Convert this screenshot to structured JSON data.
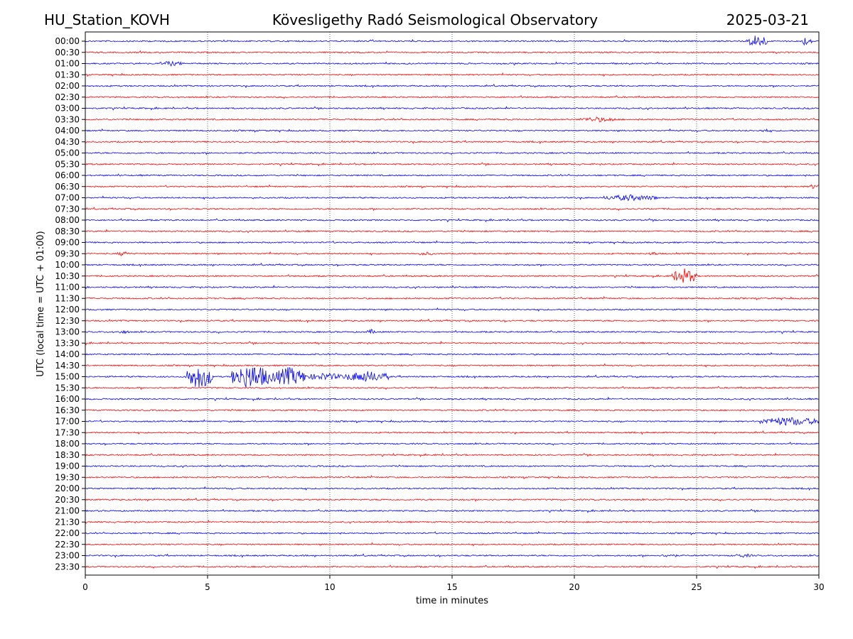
{
  "header": {
    "station": "HU_Station_KOVH",
    "observatory": "Kövesligethy Radó Seismological Observatory",
    "date": "2025-03-21"
  },
  "chart_data": {
    "type": "line",
    "title": "Kövesligethy Radó Seismological Observatory",
    "xlabel": "time in minutes",
    "ylabel": "UTC (local time = UTC + 01:00)",
    "xlim": [
      0,
      30
    ],
    "x_ticks": [
      0,
      5,
      10,
      15,
      20,
      25,
      30
    ],
    "grid": "vertical dotted lines at x ticks",
    "trace_colors": [
      "#0000ff",
      "#ff0000"
    ],
    "rows": [
      "00:00",
      "00:30",
      "01:00",
      "01:30",
      "02:00",
      "02:30",
      "03:00",
      "03:30",
      "04:00",
      "04:30",
      "05:00",
      "05:30",
      "06:00",
      "06:30",
      "07:00",
      "07:30",
      "08:00",
      "08:30",
      "09:00",
      "09:30",
      "10:00",
      "10:30",
      "11:00",
      "11:30",
      "12:00",
      "12:30",
      "13:00",
      "13:30",
      "14:00",
      "14:30",
      "15:00",
      "15:30",
      "16:00",
      "16:30",
      "17:00",
      "17:30",
      "18:00",
      "18:30",
      "19:00",
      "19:30",
      "20:00",
      "20:30",
      "21:00",
      "21:30",
      "22:00",
      "22:30",
      "23:00",
      "23:30"
    ],
    "events": [
      {
        "row": "00:00",
        "start_min": 27.1,
        "end_min": 27.9,
        "amplitude": 0.55
      },
      {
        "row": "00:00",
        "start_min": 29.2,
        "end_min": 29.7,
        "amplitude": 0.35
      },
      {
        "row": "01:00",
        "start_min": 3.0,
        "end_min": 4.0,
        "amplitude": 0.2
      },
      {
        "row": "03:30",
        "start_min": 20.2,
        "end_min": 21.7,
        "amplitude": 0.2
      },
      {
        "row": "04:00",
        "start_min": 27.6,
        "end_min": 28.0,
        "amplitude": 0.15
      },
      {
        "row": "06:30",
        "start_min": 29.6,
        "end_min": 30.0,
        "amplitude": 0.2
      },
      {
        "row": "07:00",
        "start_min": 21.2,
        "end_min": 23.4,
        "amplitude": 0.25
      },
      {
        "row": "09:30",
        "start_min": 1.3,
        "end_min": 1.8,
        "amplitude": 0.2
      },
      {
        "row": "09:30",
        "start_min": 13.6,
        "end_min": 14.2,
        "amplitude": 0.15
      },
      {
        "row": "09:30",
        "start_min": 23.0,
        "end_min": 23.5,
        "amplitude": 0.15
      },
      {
        "row": "10:30",
        "start_min": 24.0,
        "end_min": 25.0,
        "amplitude": 0.6
      },
      {
        "row": "13:00",
        "start_min": 1.3,
        "end_min": 1.8,
        "amplitude": 0.15
      },
      {
        "row": "13:00",
        "start_min": 11.5,
        "end_min": 11.9,
        "amplitude": 0.2
      },
      {
        "row": "15:00",
        "start_min": 4.1,
        "end_min": 5.2,
        "amplitude": 0.95
      },
      {
        "row": "15:00",
        "start_min": 6.0,
        "end_min": 7.6,
        "amplitude": 1.0
      },
      {
        "row": "15:00",
        "start_min": 7.6,
        "end_min": 9.0,
        "amplitude": 0.75
      },
      {
        "row": "15:00",
        "start_min": 9.0,
        "end_min": 10.6,
        "amplitude": 0.3
      },
      {
        "row": "15:00",
        "start_min": 10.6,
        "end_min": 12.4,
        "amplitude": 0.45
      },
      {
        "row": "17:00",
        "start_min": 27.6,
        "end_min": 30.0,
        "amplitude": 0.35
      },
      {
        "row": "23:00",
        "start_min": 23.6,
        "end_min": 24.2,
        "amplitude": 0.15
      },
      {
        "row": "23:00",
        "start_min": 26.5,
        "end_min": 27.3,
        "amplitude": 0.15
      }
    ]
  }
}
